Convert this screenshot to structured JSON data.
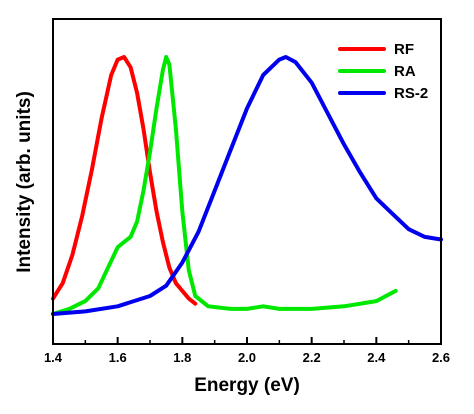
{
  "chart_data": {
    "type": "line",
    "xlabel": "Energy (eV)",
    "ylabel": "Intensity (arb. units)",
    "xlim": [
      1.4,
      2.6
    ],
    "ylim": [
      0,
      1
    ],
    "x_ticks": [
      "1.4",
      "1.6",
      "1.8",
      "2.0",
      "2.2",
      "2.4",
      "2.6"
    ],
    "y_tick_labels": "none",
    "grid": false,
    "legend_position": "top-right",
    "series": [
      {
        "name": "RF",
        "color": "#ff0000",
        "x": [
          1.4,
          1.43,
          1.46,
          1.49,
          1.52,
          1.55,
          1.58,
          1.6,
          1.62,
          1.64,
          1.66,
          1.68,
          1.7,
          1.72,
          1.74,
          1.76,
          1.78,
          1.8,
          1.82,
          1.84
        ],
        "y": [
          0.06,
          0.12,
          0.23,
          0.38,
          0.56,
          0.76,
          0.93,
          0.99,
          1.0,
          0.96,
          0.86,
          0.72,
          0.55,
          0.4,
          0.28,
          0.18,
          0.12,
          0.09,
          0.06,
          0.04
        ]
      },
      {
        "name": "RA",
        "color": "#00e800",
        "x": [
          1.4,
          1.45,
          1.5,
          1.54,
          1.57,
          1.6,
          1.62,
          1.64,
          1.66,
          1.68,
          1.7,
          1.72,
          1.74,
          1.75,
          1.76,
          1.78,
          1.8,
          1.82,
          1.84,
          1.88,
          1.95,
          2.0,
          2.05,
          2.1,
          2.2,
          2.3,
          2.4,
          2.46
        ],
        "y": [
          0.0,
          0.02,
          0.05,
          0.1,
          0.18,
          0.26,
          0.28,
          0.3,
          0.36,
          0.48,
          0.63,
          0.8,
          0.95,
          1.0,
          0.97,
          0.72,
          0.4,
          0.17,
          0.07,
          0.03,
          0.02,
          0.02,
          0.03,
          0.02,
          0.02,
          0.03,
          0.05,
          0.09
        ]
      },
      {
        "name": "RS-2",
        "color": "#0000ee",
        "x": [
          1.4,
          1.5,
          1.6,
          1.7,
          1.75,
          1.8,
          1.85,
          1.9,
          1.95,
          2.0,
          2.05,
          2.1,
          2.12,
          2.15,
          2.2,
          2.25,
          2.3,
          2.35,
          2.4,
          2.45,
          2.5,
          2.55,
          2.6
        ],
        "y": [
          0.0,
          0.01,
          0.03,
          0.07,
          0.11,
          0.2,
          0.32,
          0.48,
          0.64,
          0.8,
          0.93,
          0.99,
          1.0,
          0.98,
          0.9,
          0.78,
          0.66,
          0.55,
          0.45,
          0.39,
          0.33,
          0.3,
          0.29
        ]
      }
    ]
  }
}
